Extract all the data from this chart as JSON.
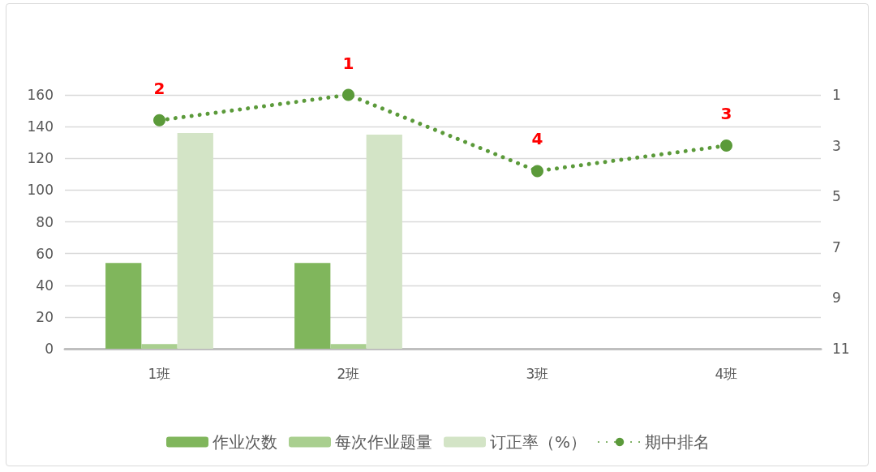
{
  "chart_data": {
    "type": "bar",
    "categories": [
      "1班",
      "2班",
      "3班",
      "4班"
    ],
    "series": [
      {
        "name": "作业次数",
        "color": "#80b65c",
        "values": [
          54,
          54,
          null,
          null
        ]
      },
      {
        "name": "每次作业题量",
        "color": "#a9cf8f",
        "values": [
          3,
          3,
          null,
          null
        ]
      },
      {
        "name": "订正率（%）",
        "color": "#d3e4c6",
        "values": [
          136,
          135,
          null,
          null
        ]
      },
      {
        "name": "期中排名",
        "type": "line",
        "axis": "y2",
        "color": "#5b9a3a",
        "values": [
          2,
          1,
          4,
          3
        ],
        "value_labels": [
          "2",
          "1",
          "4",
          "3"
        ],
        "marker": "circle",
        "line_style": "dotted"
      }
    ],
    "ylim": [
      0,
      160
    ],
    "yticks": [
      0,
      20,
      40,
      60,
      80,
      100,
      120,
      140,
      160
    ],
    "y2lim": [
      11,
      1
    ],
    "y2ticks": [
      1,
      3,
      5,
      7,
      9,
      11
    ],
    "grid": "y",
    "legend": "bottom"
  }
}
